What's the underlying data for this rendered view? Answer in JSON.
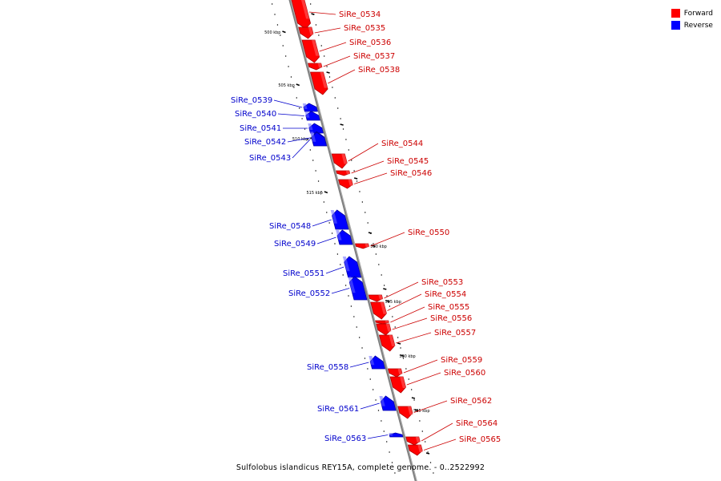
{
  "colors": {
    "forward": "#ff0000",
    "reverse": "#0000ff",
    "backbone": "#808080",
    "forward_text": "#cc0000",
    "reverse_text": "#0000cc"
  },
  "legend": [
    {
      "label": "Forward",
      "color": "#ff0000"
    },
    {
      "label": "Reverse",
      "color": "#0000ff"
    }
  ],
  "caption": "Sulfolobus islandicus REY15A, complete genome. - 0..2522992",
  "tick_labels": [
    "500 kbp",
    "505 kbp",
    "510 kbp",
    "515 kbp",
    "520 kbp",
    "525 kbp",
    "530 kbp",
    "535 kbp"
  ],
  "features": [
    {
      "label": "SiRe_0534",
      "strand": "forward"
    },
    {
      "label": "SiRe_0535",
      "strand": "forward"
    },
    {
      "label": "SiRe_0536",
      "strand": "forward"
    },
    {
      "label": "SiRe_0537",
      "strand": "forward"
    },
    {
      "label": "SiRe_0538",
      "strand": "forward"
    },
    {
      "label": "SiRe_0539",
      "strand": "reverse"
    },
    {
      "label": "SiRe_0540",
      "strand": "reverse"
    },
    {
      "label": "SiRe_0541",
      "strand": "reverse"
    },
    {
      "label": "SiRe_0542",
      "strand": "reverse"
    },
    {
      "label": "SiRe_0543",
      "strand": "reverse"
    },
    {
      "label": "SiRe_0544",
      "strand": "forward"
    },
    {
      "label": "SiRe_0545",
      "strand": "forward"
    },
    {
      "label": "SiRe_0546",
      "strand": "forward"
    },
    {
      "label": "SiRe_0548",
      "strand": "reverse"
    },
    {
      "label": "SiRe_0549",
      "strand": "reverse"
    },
    {
      "label": "SiRe_0550",
      "strand": "forward"
    },
    {
      "label": "SiRe_0551",
      "strand": "reverse"
    },
    {
      "label": "SiRe_0552",
      "strand": "reverse"
    },
    {
      "label": "SiRe_0553",
      "strand": "forward"
    },
    {
      "label": "SiRe_0554",
      "strand": "forward"
    },
    {
      "label": "SiRe_0555",
      "strand": "forward"
    },
    {
      "label": "SiRe_0556",
      "strand": "forward"
    },
    {
      "label": "SiRe_0557",
      "strand": "forward"
    },
    {
      "label": "SiRe_0558",
      "strand": "reverse"
    },
    {
      "label": "SiRe_0559",
      "strand": "forward"
    },
    {
      "label": "SiRe_0560",
      "strand": "forward"
    },
    {
      "label": "SiRe_0561",
      "strand": "reverse"
    },
    {
      "label": "SiRe_0562",
      "strand": "forward"
    },
    {
      "label": "SiRe_0563",
      "strand": "reverse"
    },
    {
      "label": "SiRe_0564",
      "strand": "forward"
    },
    {
      "label": "SiRe_0565",
      "strand": "forward"
    }
  ]
}
